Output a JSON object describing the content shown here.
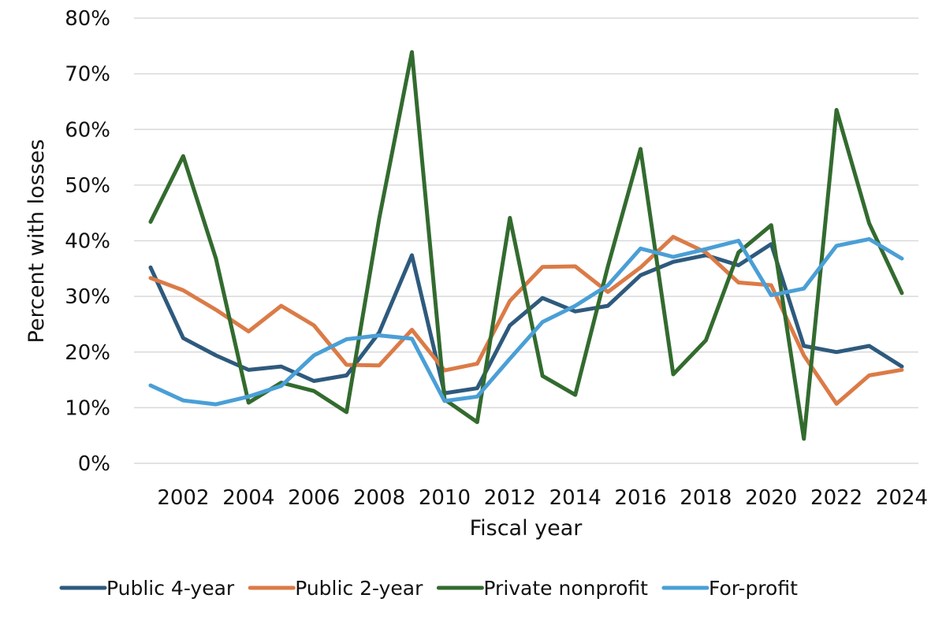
{
  "chart_data": {
    "type": "line",
    "title": "",
    "xlabel": "Fiscal year",
    "ylabel": "Percent with losses",
    "x": [
      2001,
      2002,
      2003,
      2004,
      2005,
      2006,
      2007,
      2008,
      2009,
      2010,
      2011,
      2012,
      2013,
      2014,
      2015,
      2016,
      2017,
      2018,
      2019,
      2020,
      2021,
      2022,
      2023,
      2024
    ],
    "x_tick_labels": [
      "2002",
      "2004",
      "2006",
      "2008",
      "2010",
      "2012",
      "2014",
      "2016",
      "2018",
      "2020",
      "2022",
      "2024"
    ],
    "ylim": [
      0,
      80
    ],
    "y_tick_labels": [
      "0%",
      "10%",
      "20%",
      "30%",
      "40%",
      "50%",
      "60%",
      "70%",
      "80%"
    ],
    "grid": "horizontal",
    "legend_position": "bottom",
    "series": [
      {
        "name": "Public 4-year",
        "color": "#2e5a7d",
        "values": [
          35.2,
          22.5,
          19.4,
          16.8,
          17.4,
          14.8,
          15.8,
          23.5,
          37.4,
          12.6,
          13.5,
          24.8,
          29.7,
          27.3,
          28.3,
          33.8,
          36.2,
          37.4,
          35.6,
          39.4,
          21.1,
          20.0,
          21.1,
          17.4
        ]
      },
      {
        "name": "Public 2-year",
        "color": "#db7b47",
        "values": [
          33.3,
          31.1,
          27.6,
          23.7,
          28.3,
          24.8,
          17.7,
          17.6,
          24.0,
          16.7,
          17.9,
          29.2,
          35.3,
          35.4,
          30.8,
          35.2,
          40.7,
          37.9,
          32.5,
          32.0,
          19.4,
          10.7,
          15.8,
          16.8
        ]
      },
      {
        "name": "Private nonprofit",
        "color": "#336b2f",
        "values": [
          43.4,
          55.2,
          36.8,
          10.9,
          14.5,
          13.0,
          9.2,
          44.0,
          73.9,
          11.5,
          7.4,
          44.1,
          15.7,
          12.3,
          35.4,
          56.5,
          16.0,
          22.1,
          37.9,
          42.8,
          4.4,
          63.5,
          43.1,
          30.6
        ]
      },
      {
        "name": "For-profit",
        "color": "#4a9fd6",
        "values": [
          14.0,
          11.3,
          10.6,
          12.0,
          13.9,
          19.4,
          22.3,
          23.0,
          22.4,
          11.2,
          12.0,
          18.8,
          25.4,
          28.3,
          32.0,
          38.6,
          37.1,
          38.5,
          40.0,
          30.2,
          31.4,
          39.1,
          40.3,
          36.8
        ]
      }
    ]
  }
}
